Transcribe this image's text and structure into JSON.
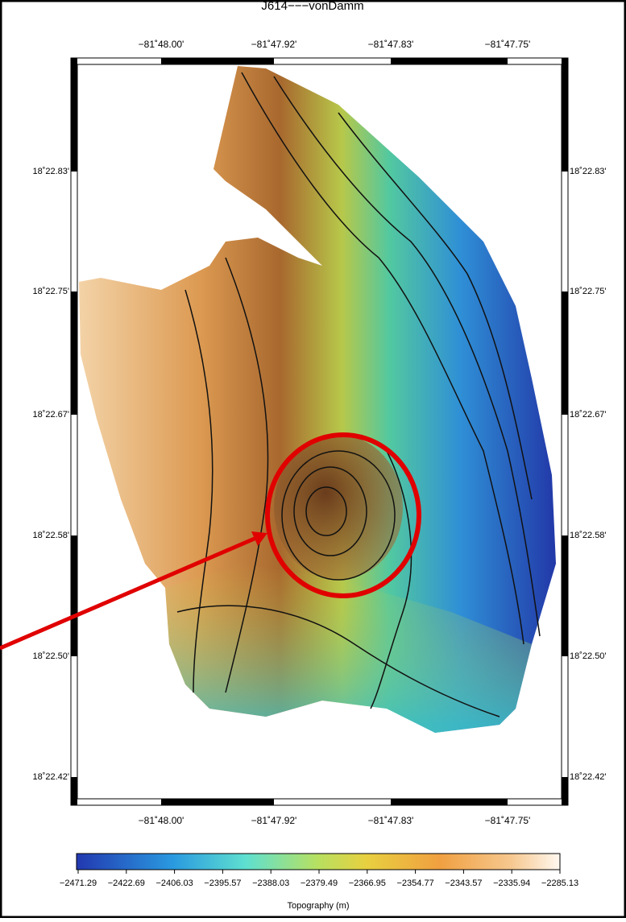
{
  "title": "J614−−−vonDamm",
  "axes": {
    "x_labels": [
      "−81˚48.00'",
      "−81˚47.92'",
      "−81˚47.83'",
      "−81˚47.75'"
    ],
    "y_labels": [
      "18˚22.83'",
      "18˚22.75'",
      "18˚22.67'",
      "18˚22.58'",
      "18˚22.50'",
      "18˚22.42'"
    ]
  },
  "colorbar": {
    "labels": [
      "−2471.29",
      "−2422.69",
      "−2406.03",
      "−2395.57",
      "−2388.03",
      "−2379.49",
      "−2366.95",
      "−2354.77",
      "−2343.57",
      "−2335.94",
      "−2285.13"
    ],
    "title": "Topography (m)"
  }
}
